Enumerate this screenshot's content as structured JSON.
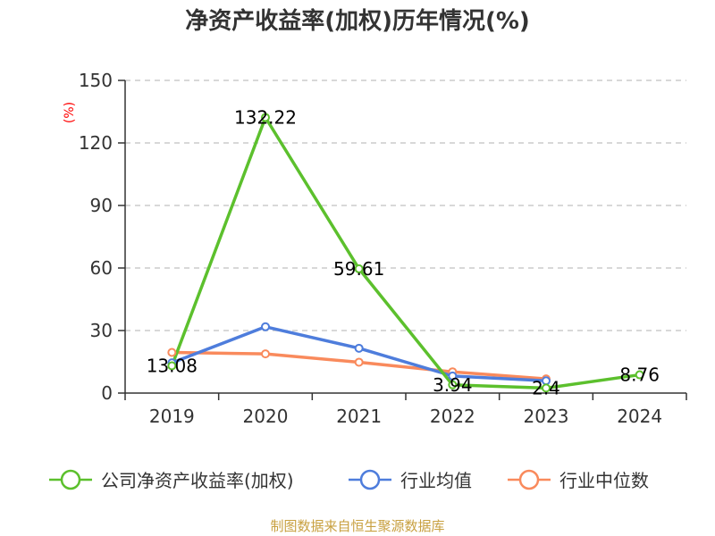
{
  "chart_data": {
    "type": "line",
    "title": "净资产收益率(加权)历年情况(%)",
    "ylabel": "(%)",
    "xlabel": "",
    "categories": [
      "2019",
      "2020",
      "2021",
      "2022",
      "2023",
      "2024"
    ],
    "ylim": [
      0,
      150
    ],
    "yticks": [
      0,
      30,
      60,
      90,
      120,
      150
    ],
    "grid": true,
    "legend_position": "bottom",
    "series": [
      {
        "name": "公司净资产收益率(加权)",
        "color": "#5cc02d",
        "values": [
          13.08,
          132.22,
          59.61,
          3.94,
          2.4,
          8.76
        ],
        "labels": [
          "13.08",
          "132.22",
          "59.61",
          "3.94",
          "2.4",
          "8.76"
        ]
      },
      {
        "name": "行业均值",
        "color": "#4e7ddc",
        "values": [
          14.5,
          31.8,
          21.5,
          8.2,
          5.9,
          null
        ]
      },
      {
        "name": "行业中位数",
        "color": "#f98a5c",
        "values": [
          19.5,
          18.8,
          14.8,
          10.2,
          6.8,
          null
        ]
      }
    ]
  },
  "source": "制图数据来自恒生聚源数据库"
}
